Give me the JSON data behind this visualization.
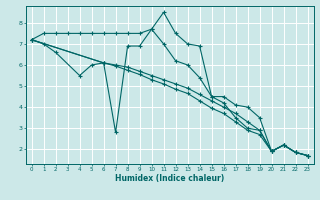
{
  "xlabel": "Humidex (Indice chaleur)",
  "bg_color": "#cce8e8",
  "grid_color": "#ffffff",
  "line_color": "#006666",
  "xlim": [
    -0.5,
    23.5
  ],
  "ylim": [
    1.3,
    8.8
  ],
  "xticks": [
    0,
    1,
    2,
    3,
    4,
    5,
    6,
    7,
    8,
    9,
    10,
    11,
    12,
    13,
    14,
    15,
    16,
    17,
    18,
    19,
    20,
    21,
    22,
    23
  ],
  "yticks": [
    2,
    3,
    4,
    5,
    6,
    7,
    8
  ],
  "series": [
    {
      "x": [
        0,
        1,
        2,
        3,
        4,
        5,
        6,
        7,
        8,
        9,
        10,
        11,
        12,
        13,
        14,
        15,
        16,
        17,
        18,
        19,
        20,
        21,
        22,
        23
      ],
      "y": [
        7.2,
        7.5,
        7.5,
        7.5,
        7.5,
        7.5,
        7.5,
        7.5,
        7.5,
        7.5,
        7.7,
        8.5,
        7.5,
        7.0,
        6.9,
        4.5,
        4.5,
        4.1,
        4.0,
        3.5,
        1.9,
        2.2,
        1.85,
        1.7
      ]
    },
    {
      "x": [
        0,
        1,
        2,
        4,
        5,
        6,
        7,
        8,
        9,
        10,
        11,
        12,
        13,
        14,
        15,
        16,
        17,
        18,
        19,
        20,
        21,
        22,
        23
      ],
      "y": [
        7.2,
        7.0,
        6.6,
        5.5,
        6.0,
        6.1,
        2.8,
        6.9,
        6.9,
        7.7,
        7.0,
        6.2,
        6.0,
        5.4,
        4.5,
        4.2,
        3.5,
        3.0,
        2.9,
        1.9,
        2.2,
        1.85,
        1.7
      ]
    },
    {
      "x": [
        0,
        6,
        7,
        8,
        9,
        10,
        11,
        12,
        13,
        14,
        15,
        16,
        17,
        18,
        19,
        20,
        21,
        22,
        23
      ],
      "y": [
        7.2,
        6.1,
        6.0,
        5.9,
        5.7,
        5.5,
        5.3,
        5.1,
        4.9,
        4.6,
        4.3,
        4.0,
        3.7,
        3.3,
        2.9,
        1.9,
        2.2,
        1.85,
        1.7
      ]
    },
    {
      "x": [
        0,
        6,
        7,
        8,
        9,
        10,
        11,
        12,
        13,
        14,
        15,
        16,
        17,
        18,
        19,
        20,
        21,
        22,
        23
      ],
      "y": [
        7.2,
        6.1,
        5.95,
        5.75,
        5.55,
        5.3,
        5.1,
        4.85,
        4.65,
        4.3,
        3.95,
        3.7,
        3.3,
        2.9,
        2.7,
        1.9,
        2.2,
        1.85,
        1.7
      ]
    }
  ]
}
